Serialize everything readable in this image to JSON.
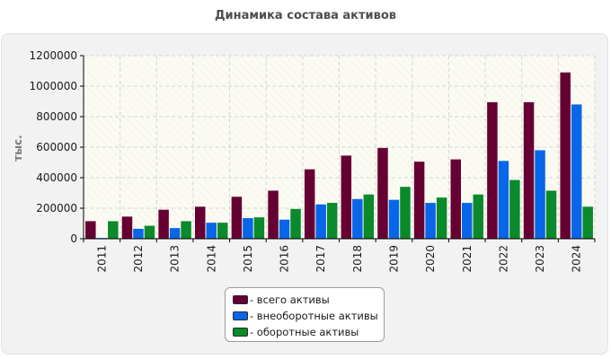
{
  "chart_data": {
    "type": "bar",
    "title": "Динамика состава активов",
    "ylabel": "тыс.",
    "xlabel": "",
    "ylim": [
      0,
      1200000
    ],
    "yticks": [
      0,
      200000,
      400000,
      600000,
      800000,
      1000000,
      1200000
    ],
    "grid": true,
    "legend_position": "bottom-center",
    "categories": [
      "2011",
      "2012",
      "2013",
      "2014",
      "2015",
      "2016",
      "2017",
      "2018",
      "2019",
      "2020",
      "2021",
      "2022",
      "2023",
      "2024"
    ],
    "series": [
      {
        "name": "- всего активы",
        "color": "#660033",
        "values": [
          115000,
          145000,
          190000,
          210000,
          275000,
          315000,
          455000,
          545000,
          595000,
          505000,
          520000,
          895000,
          895000,
          1090000
        ]
      },
      {
        "name": "- внеоборотные активы",
        "color": "#0a66e8",
        "values": [
          5000,
          65000,
          70000,
          105000,
          135000,
          125000,
          225000,
          260000,
          255000,
          235000,
          235000,
          510000,
          580000,
          880000
        ]
      },
      {
        "name": "- оборотные активы",
        "color": "#0a8a2a",
        "values": [
          115000,
          85000,
          115000,
          105000,
          140000,
          195000,
          235000,
          290000,
          340000,
          270000,
          290000,
          385000,
          315000,
          210000
        ]
      }
    ]
  }
}
